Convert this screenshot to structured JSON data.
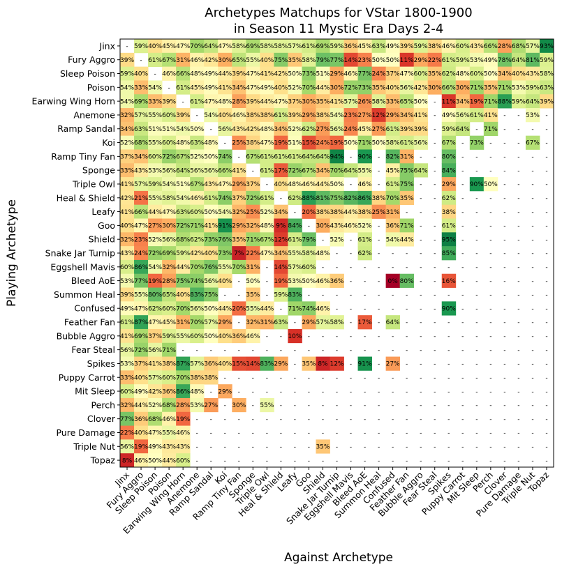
{
  "chart_data": {
    "type": "heatmap",
    "title": [
      "Archetypes Matchups for VStar 1800-1900",
      "in Season 11 Mystic Era Days 2-4"
    ],
    "xlabel": "Against Archetype",
    "ylabel": "Playing Archetype",
    "colormap": "RdYlGn",
    "value_range": [
      0,
      100
    ],
    "missing_label": "-",
    "value_suffix": "%",
    "archetypes": [
      "Jinx",
      "Fury Aggro",
      "Sleep Poison",
      "Poison",
      "Earwing Wing Horn",
      "Anemone",
      "Ramp Sandal",
      "Koi",
      "Ramp Tiny Fan",
      "Sponge",
      "Triple Owl",
      "Heal & Shield",
      "Leafy",
      "Goo",
      "Shield",
      "Snake Jar Turnip",
      "Eggshell Mavis",
      "Bleed AoE",
      "Summon Heal",
      "Confused",
      "Feather Fan",
      "Bubble Aggro",
      "Fear Steal",
      "Spikes",
      "Puppy Carrot",
      "Mit Sleep",
      "Perch",
      "Clover",
      "Pure Damage",
      "Triple Nut",
      "Topaz"
    ],
    "values": [
      [
        null,
        59,
        40,
        45,
        47,
        70,
        64,
        47,
        58,
        69,
        58,
        58,
        57,
        61,
        69,
        59,
        36,
        45,
        63,
        49,
        39,
        59,
        38,
        46,
        60,
        43,
        66,
        28,
        68,
        57,
        93
      ],
      [
        39,
        null,
        61,
        67,
        31,
        46,
        42,
        30,
        65,
        55,
        40,
        75,
        35,
        58,
        79,
        77,
        14,
        23,
        50,
        50,
        11,
        29,
        22,
        61,
        59,
        53,
        49,
        78,
        64,
        81,
        59
      ],
      [
        59,
        40,
        null,
        46,
        66,
        48,
        49,
        44,
        39,
        47,
        41,
        42,
        50,
        73,
        51,
        29,
        46,
        77,
        24,
        37,
        47,
        60,
        35,
        62,
        48,
        60,
        50,
        34,
        40,
        43,
        58
      ],
      [
        54,
        33,
        54,
        null,
        61,
        45,
        49,
        41,
        34,
        47,
        49,
        40,
        52,
        70,
        44,
        30,
        72,
        73,
        35,
        40,
        56,
        42,
        30,
        66,
        30,
        71,
        35,
        71,
        53,
        59,
        63
      ],
      [
        54,
        69,
        33,
        39,
        null,
        61,
        47,
        48,
        28,
        39,
        44,
        47,
        37,
        30,
        35,
        41,
        57,
        26,
        58,
        33,
        65,
        50,
        null,
        11,
        34,
        19,
        71,
        88,
        59,
        64,
        39
      ],
      [
        32,
        57,
        55,
        60,
        39,
        null,
        54,
        40,
        46,
        38,
        38,
        61,
        39,
        29,
        38,
        54,
        23,
        27,
        12,
        29,
        34,
        41,
        null,
        49,
        56,
        61,
        41,
        null,
        null,
        53,
        null
      ],
      [
        34,
        63,
        51,
        51,
        54,
        50,
        null,
        56,
        43,
        42,
        48,
        34,
        52,
        62,
        27,
        56,
        24,
        45,
        27,
        61,
        39,
        39,
        null,
        59,
        64,
        null,
        71,
        null,
        null,
        null,
        null
      ],
      [
        52,
        68,
        55,
        60,
        48,
        63,
        48,
        null,
        25,
        38,
        47,
        19,
        51,
        15,
        24,
        19,
        50,
        71,
        50,
        58,
        61,
        56,
        null,
        67,
        null,
        73,
        null,
        null,
        null,
        67,
        null
      ],
      [
        37,
        34,
        60,
        72,
        67,
        52,
        50,
        74,
        null,
        67,
        61,
        61,
        61,
        64,
        64,
        94,
        null,
        90,
        null,
        82,
        31,
        null,
        null,
        80,
        null,
        null,
        null,
        null,
        null,
        null,
        null
      ],
      [
        33,
        43,
        53,
        56,
        64,
        56,
        56,
        66,
        41,
        null,
        61,
        17,
        72,
        67,
        34,
        70,
        64,
        55,
        null,
        45,
        75,
        64,
        null,
        84,
        null,
        null,
        null,
        null,
        null,
        null,
        null
      ],
      [
        41,
        57,
        59,
        54,
        51,
        67,
        43,
        47,
        29,
        37,
        null,
        40,
        48,
        46,
        44,
        50,
        null,
        46,
        null,
        61,
        75,
        null,
        null,
        29,
        null,
        90,
        50,
        null,
        null,
        null,
        null
      ],
      [
        42,
        21,
        55,
        58,
        54,
        46,
        61,
        74,
        37,
        72,
        61,
        null,
        62,
        88,
        81,
        75,
        82,
        86,
        38,
        70,
        35,
        null,
        null,
        62,
        null,
        null,
        null,
        null,
        null,
        null,
        null
      ],
      [
        41,
        66,
        44,
        47,
        63,
        60,
        50,
        54,
        32,
        25,
        52,
        34,
        null,
        20,
        38,
        38,
        44,
        38,
        25,
        31,
        null,
        null,
        null,
        38,
        null,
        null,
        null,
        null,
        null,
        null,
        null
      ],
      [
        40,
        47,
        27,
        30,
        72,
        71,
        41,
        91,
        29,
        32,
        48,
        9,
        84,
        null,
        30,
        43,
        46,
        52,
        null,
        36,
        71,
        null,
        null,
        61,
        null,
        null,
        null,
        null,
        null,
        null,
        null
      ],
      [
        32,
        23,
        52,
        56,
        68,
        62,
        73,
        76,
        35,
        71,
        67,
        12,
        61,
        79,
        null,
        52,
        null,
        61,
        null,
        54,
        44,
        null,
        null,
        95,
        null,
        null,
        null,
        null,
        null,
        null,
        null
      ],
      [
        43,
        24,
        72,
        69,
        59,
        42,
        40,
        73,
        7,
        22,
        47,
        34,
        55,
        58,
        48,
        null,
        null,
        62,
        null,
        null,
        null,
        null,
        null,
        85,
        null,
        null,
        null,
        null,
        null,
        null,
        null
      ],
      [
        60,
        86,
        54,
        32,
        44,
        70,
        76,
        55,
        70,
        31,
        null,
        14,
        57,
        60,
        null,
        null,
        null,
        null,
        null,
        null,
        null,
        null,
        null,
        null,
        null,
        null,
        null,
        null,
        null,
        null,
        null
      ],
      [
        53,
        77,
        19,
        28,
        75,
        74,
        56,
        40,
        null,
        50,
        null,
        19,
        53,
        50,
        46,
        36,
        null,
        null,
        null,
        0,
        80,
        null,
        null,
        16,
        null,
        null,
        null,
        null,
        null,
        null,
        null
      ],
      [
        39,
        55,
        80,
        65,
        40,
        83,
        75,
        null,
        null,
        35,
        null,
        59,
        83,
        null,
        null,
        null,
        null,
        null,
        null,
        null,
        null,
        null,
        null,
        null,
        null,
        null,
        null,
        null,
        null,
        null,
        null
      ],
      [
        49,
        47,
        62,
        60,
        70,
        56,
        50,
        44,
        20,
        55,
        44,
        null,
        71,
        74,
        46,
        null,
        null,
        null,
        null,
        null,
        null,
        null,
        null,
        90,
        null,
        null,
        null,
        null,
        null,
        null,
        null
      ],
      [
        61,
        87,
        47,
        45,
        31,
        70,
        57,
        29,
        null,
        32,
        31,
        63,
        null,
        29,
        57,
        58,
        null,
        17,
        null,
        64,
        null,
        null,
        null,
        null,
        null,
        null,
        null,
        null,
        null,
        null,
        null
      ],
      [
        41,
        69,
        37,
        59,
        55,
        60,
        50,
        40,
        36,
        46,
        null,
        null,
        10,
        null,
        null,
        null,
        null,
        null,
        null,
        null,
        null,
        null,
        null,
        null,
        null,
        null,
        null,
        null,
        null,
        null,
        null
      ],
      [
        56,
        72,
        56,
        71,
        null,
        null,
        null,
        null,
        null,
        null,
        null,
        null,
        null,
        null,
        null,
        null,
        null,
        null,
        null,
        null,
        null,
        null,
        null,
        null,
        null,
        null,
        null,
        null,
        null,
        null,
        null
      ],
      [
        53,
        37,
        41,
        38,
        87,
        57,
        36,
        40,
        15,
        14,
        83,
        29,
        null,
        35,
        8,
        12,
        null,
        91,
        null,
        27,
        null,
        null,
        null,
        null,
        null,
        null,
        null,
        null,
        null,
        null,
        null
      ],
      [
        33,
        40,
        57,
        60,
        70,
        38,
        38,
        null,
        null,
        null,
        null,
        null,
        null,
        null,
        null,
        null,
        null,
        null,
        null,
        null,
        null,
        null,
        null,
        null,
        null,
        null,
        null,
        null,
        null,
        null,
        null
      ],
      [
        60,
        49,
        42,
        36,
        86,
        48,
        null,
        29,
        null,
        null,
        null,
        null,
        null,
        null,
        null,
        null,
        null,
        null,
        null,
        null,
        null,
        null,
        null,
        null,
        null,
        null,
        null,
        null,
        null,
        null,
        null
      ],
      [
        32,
        44,
        52,
        68,
        28,
        53,
        27,
        null,
        30,
        null,
        55,
        null,
        null,
        null,
        null,
        null,
        null,
        null,
        null,
        null,
        null,
        null,
        null,
        null,
        null,
        null,
        null,
        null,
        null,
        null,
        null
      ],
      [
        77,
        36,
        68,
        46,
        19,
        null,
        null,
        null,
        null,
        null,
        null,
        null,
        null,
        null,
        null,
        null,
        null,
        null,
        null,
        null,
        null,
        null,
        null,
        null,
        null,
        null,
        null,
        null,
        null,
        null,
        null
      ],
      [
        22,
        40,
        47,
        55,
        46,
        null,
        null,
        null,
        null,
        null,
        null,
        null,
        null,
        null,
        null,
        null,
        null,
        null,
        null,
        null,
        null,
        null,
        null,
        null,
        null,
        null,
        null,
        null,
        null,
        null,
        null
      ],
      [
        56,
        19,
        49,
        43,
        43,
        null,
        null,
        null,
        null,
        null,
        null,
        null,
        null,
        null,
        35,
        null,
        null,
        null,
        null,
        null,
        null,
        null,
        null,
        null,
        null,
        null,
        null,
        null,
        null,
        null,
        null
      ],
      [
        8,
        46,
        50,
        44,
        60,
        null,
        null,
        null,
        null,
        null,
        null,
        null,
        null,
        null,
        null,
        null,
        null,
        null,
        null,
        null,
        null,
        null,
        null,
        null,
        null,
        null,
        null,
        null,
        null,
        null,
        null
      ]
    ]
  }
}
